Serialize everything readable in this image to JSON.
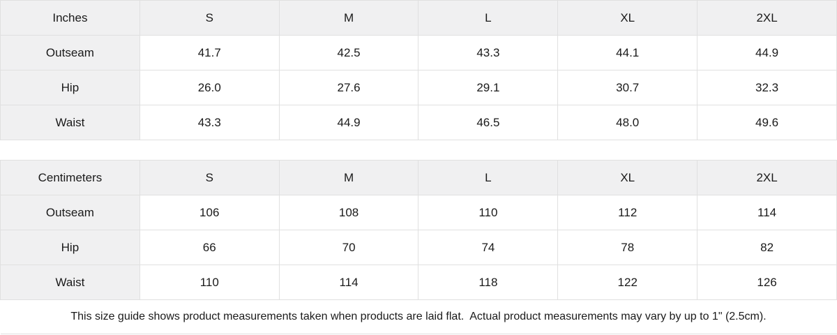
{
  "colors": {
    "header_cell_bg": "#f0f0f1",
    "border": "#e0e0e0",
    "text": "#1a1a1a",
    "background": "#ffffff"
  },
  "inches_table": {
    "unit_label": "Inches",
    "sizes": [
      "S",
      "M",
      "L",
      "XL",
      "2XL"
    ],
    "rows": [
      {
        "label": "Outseam",
        "values": [
          "41.7",
          "42.5",
          "43.3",
          "44.1",
          "44.9"
        ]
      },
      {
        "label": "Hip",
        "values": [
          "26.0",
          "27.6",
          "29.1",
          "30.7",
          "32.3"
        ]
      },
      {
        "label": "Waist",
        "values": [
          "43.3",
          "44.9",
          "46.5",
          "48.0",
          "49.6"
        ]
      }
    ]
  },
  "cm_table": {
    "unit_label": "Centimeters",
    "sizes": [
      "S",
      "M",
      "L",
      "XL",
      "2XL"
    ],
    "rows": [
      {
        "label": "Outseam",
        "values": [
          "106",
          "108",
          "110",
          "112",
          "114"
        ]
      },
      {
        "label": "Hip",
        "values": [
          "66",
          "70",
          "74",
          "78",
          "82"
        ]
      },
      {
        "label": "Waist",
        "values": [
          "110",
          "114",
          "118",
          "122",
          "126"
        ]
      }
    ]
  },
  "footer": {
    "note": "This size guide shows product measurements taken when products are laid flat.  Actual product measurements may vary by up to 1\" (2.5cm)."
  }
}
